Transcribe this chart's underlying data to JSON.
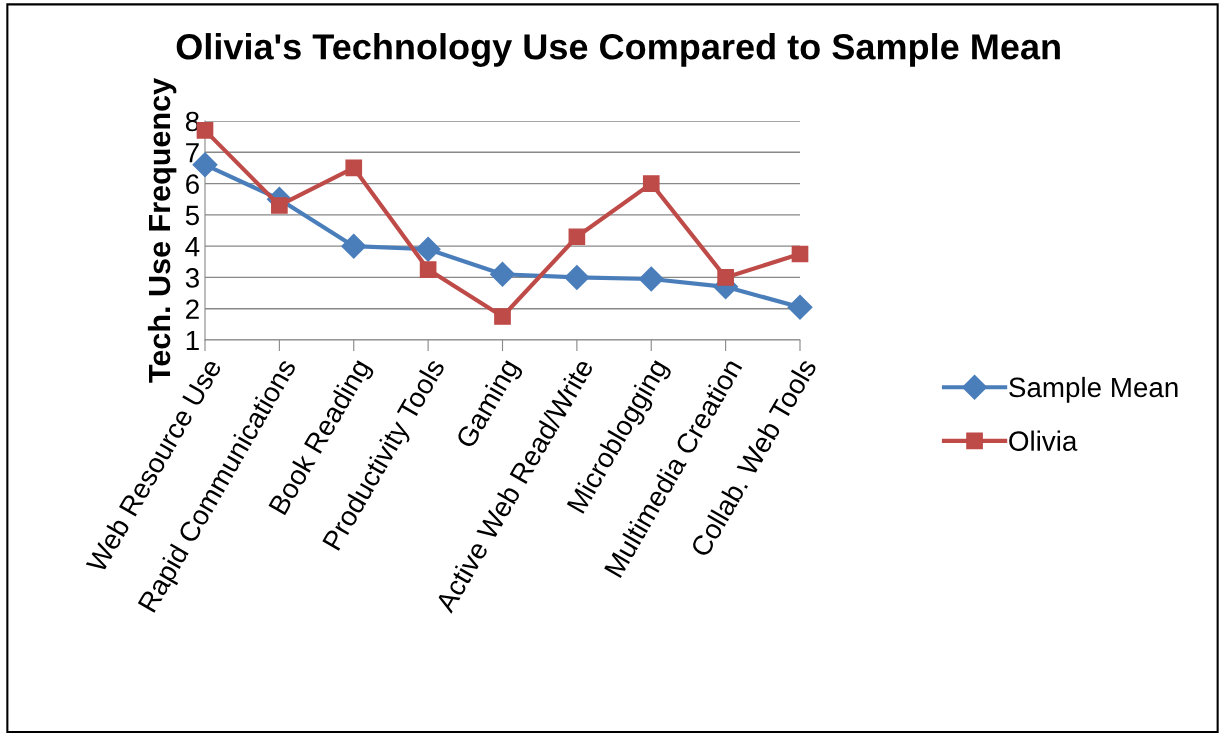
{
  "chart_data": {
    "type": "line",
    "title": "Olivia's Technology Use Compared to Sample Mean",
    "ylabel": "Tech. Use Frequency",
    "categories": [
      "Web Resource Use",
      "Rapid Communications",
      "Book Reading",
      "Productivity Tools",
      "Gaming",
      "Active Web Read/Write",
      "Microblogging",
      "Multimedia Creation",
      "Collab. Web Tools"
    ],
    "series": [
      {
        "name": "Sample Mean",
        "color": "#4a7ebb",
        "marker": "diamond",
        "values": [
          6.6,
          5.5,
          4.0,
          3.9,
          3.1,
          3.0,
          2.95,
          2.7,
          2.05
        ]
      },
      {
        "name": "Olivia",
        "color": "#be4b48",
        "marker": "square",
        "values": [
          7.7,
          5.3,
          6.5,
          3.25,
          1.75,
          4.3,
          6.0,
          3.0,
          3.75
        ]
      }
    ],
    "ylim": [
      1,
      8
    ],
    "yticks": [
      1,
      2,
      3,
      4,
      5,
      6,
      7,
      8
    ],
    "grid": "y",
    "legend": "right",
    "line_style": "solid"
  }
}
